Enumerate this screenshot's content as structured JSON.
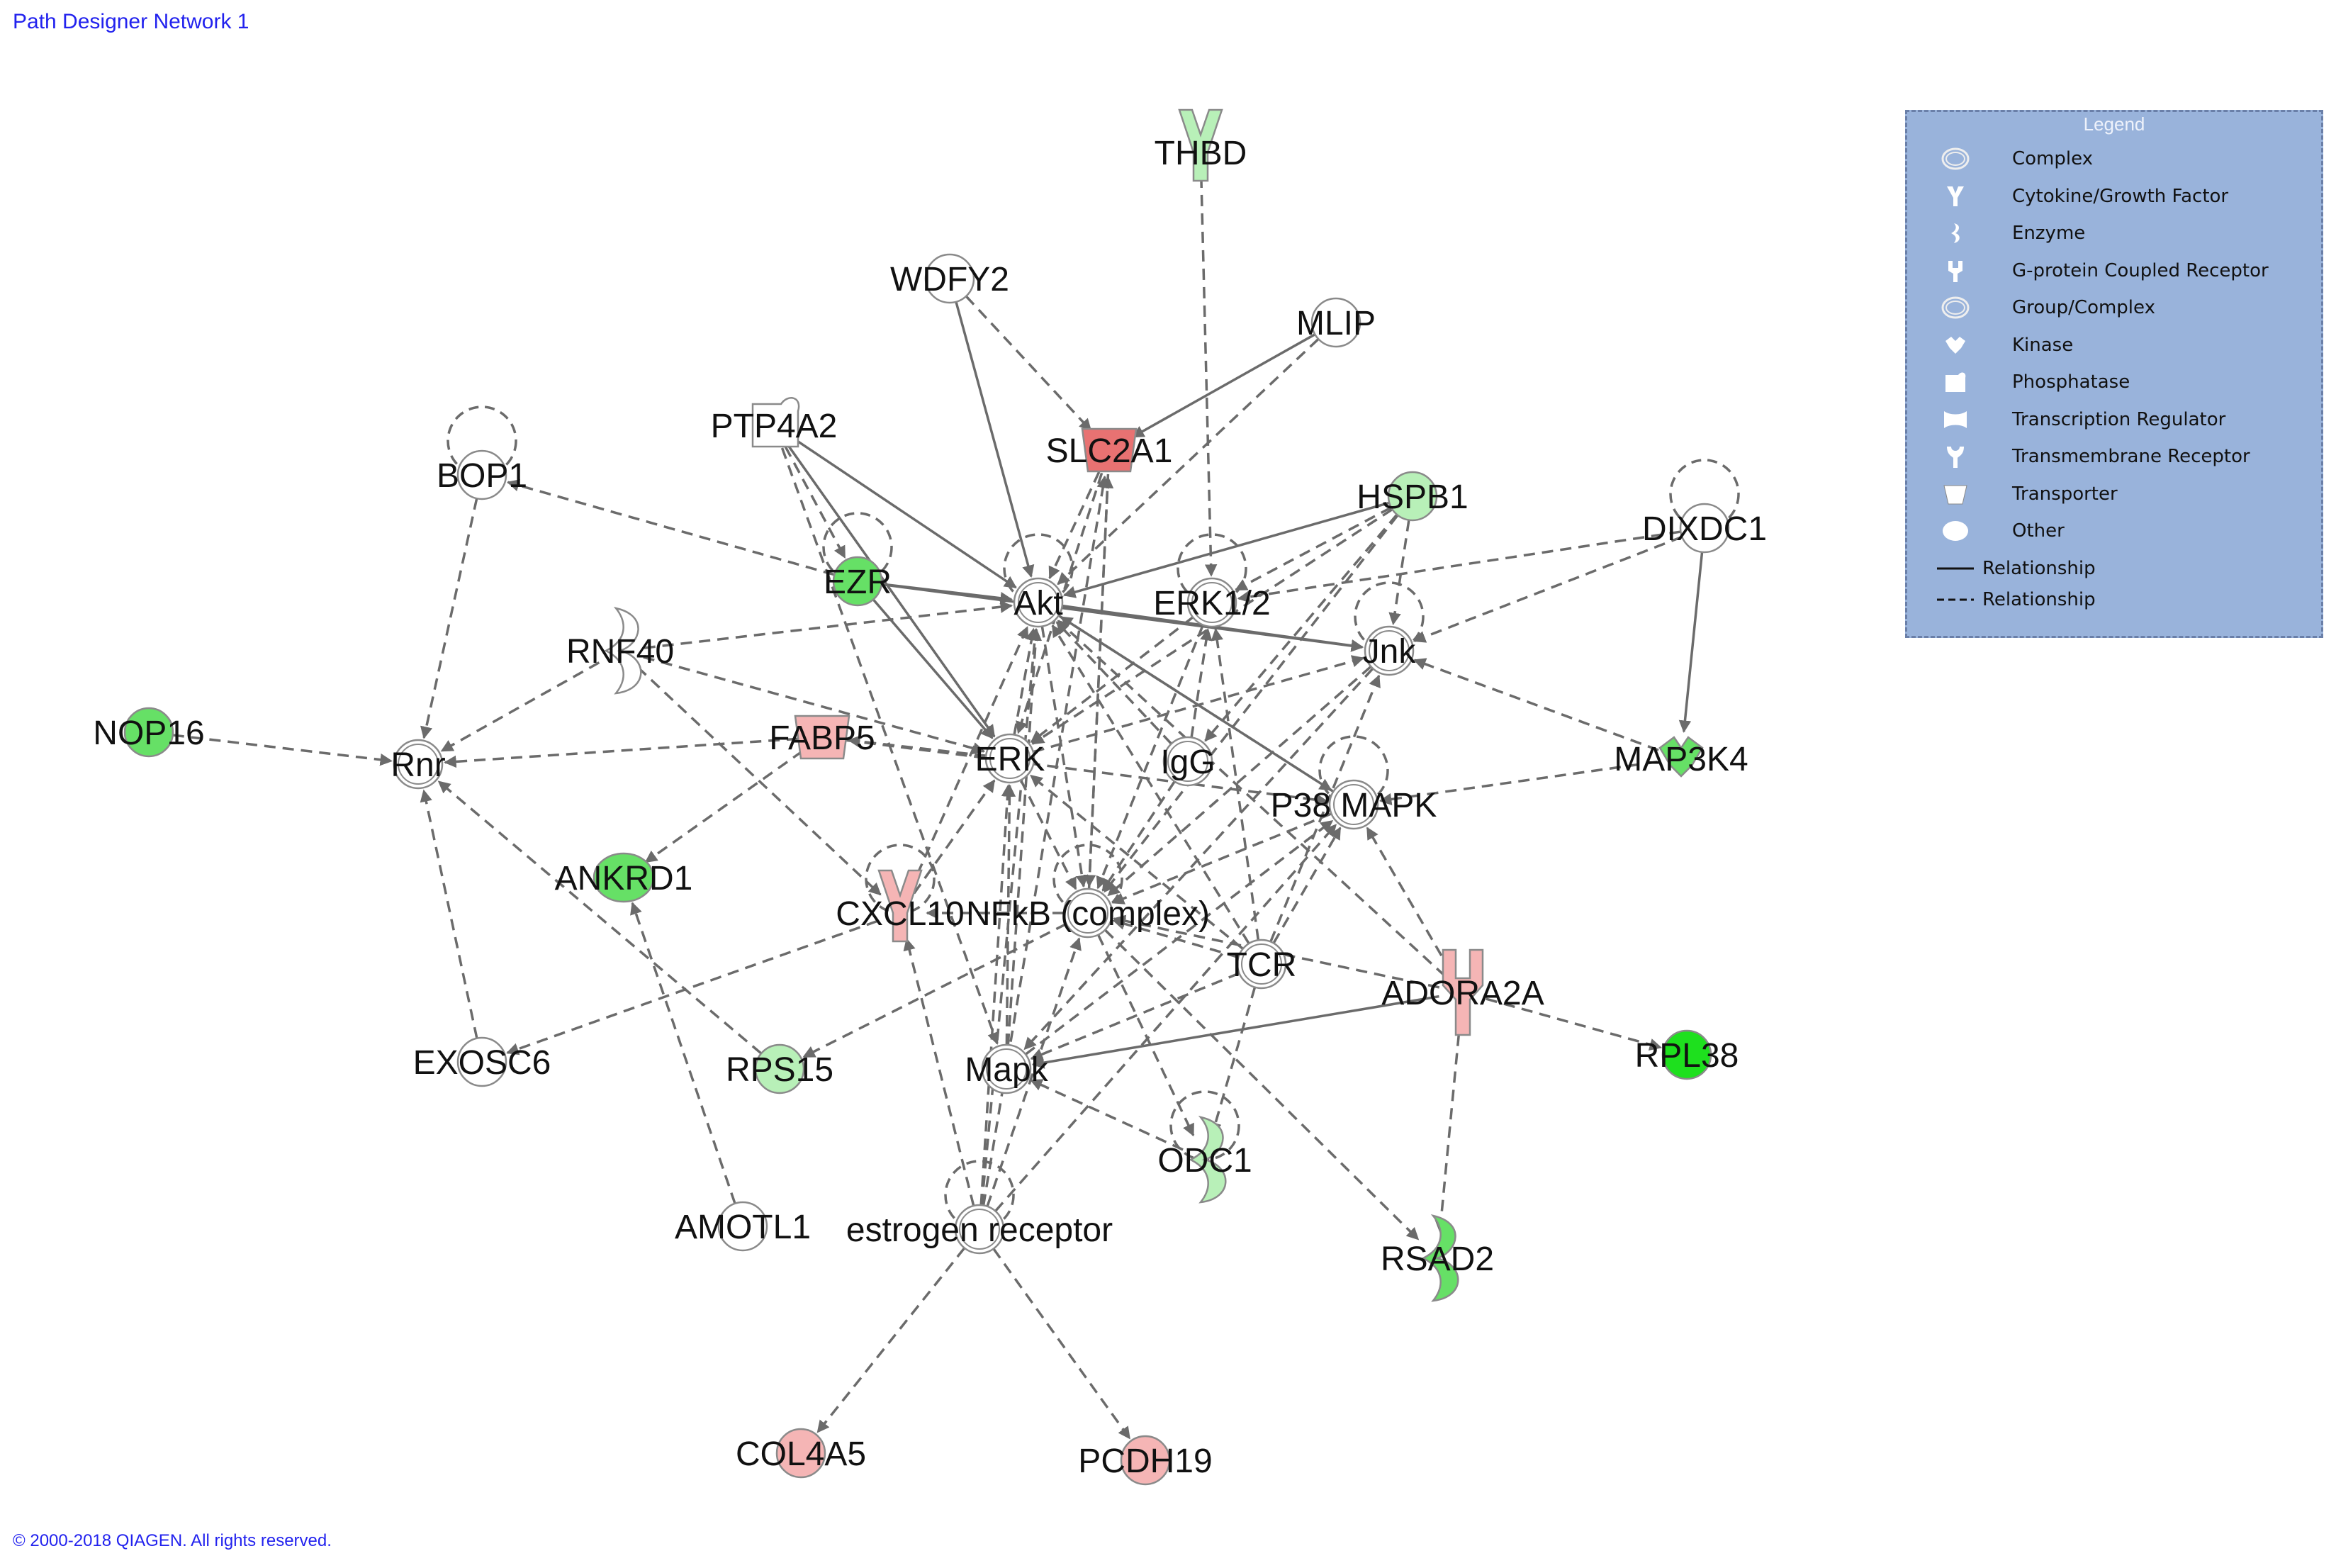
{
  "title": "Path Designer Network 1",
  "copyright": "© 2000-2018 QIAGEN. All rights reserved.",
  "colors": {
    "up_strong": "#e87272",
    "up_light": "#f5b5b5",
    "down_strong": "#1ee01e",
    "down_medium": "#66e066",
    "down_light": "#b8f0b8",
    "neutral": "#ffffff",
    "edge": "#6b6b6b",
    "legend_bg": "#99b3db"
  },
  "legend": {
    "title": "Legend",
    "items": [
      {
        "label": "Complex",
        "icon": "complex-icon"
      },
      {
        "label": "Cytokine/Growth Factor",
        "icon": "cytokine-icon"
      },
      {
        "label": "Enzyme",
        "icon": "enzyme-icon"
      },
      {
        "label": "G-protein Coupled Receptor",
        "icon": "gpcr-icon"
      },
      {
        "label": "Group/Complex",
        "icon": "group-complex-icon"
      },
      {
        "label": "Kinase",
        "icon": "kinase-icon"
      },
      {
        "label": "Phosphatase",
        "icon": "phosphatase-icon"
      },
      {
        "label": "Transcription Regulator",
        "icon": "transcription-regulator-icon"
      },
      {
        "label": "Transmembrane Receptor",
        "icon": "transmembrane-receptor-icon"
      },
      {
        "label": "Transporter",
        "icon": "transporter-icon"
      },
      {
        "label": "Other",
        "icon": "other-icon"
      }
    ],
    "relations": [
      {
        "label": "Relationship",
        "style": "solid"
      },
      {
        "label": "Relationship",
        "style": "dashed"
      }
    ]
  },
  "nodes": [
    {
      "id": "THBD",
      "label": "THBD",
      "shape": "cytokine",
      "color": "down_light"
    },
    {
      "id": "WDFY2",
      "label": "WDFY2",
      "shape": "other",
      "color": "neutral"
    },
    {
      "id": "MLIP",
      "label": "MLIP",
      "shape": "other",
      "color": "neutral"
    },
    {
      "id": "PTP4A2",
      "label": "PTP4A2",
      "shape": "phosphatase",
      "color": "neutral"
    },
    {
      "id": "SLC2A1",
      "label": "SLC2A1",
      "shape": "transporter",
      "color": "up_strong"
    },
    {
      "id": "BOP1",
      "label": "BOP1",
      "shape": "other",
      "color": "neutral"
    },
    {
      "id": "HSPB1",
      "label": "HSPB1",
      "shape": "other",
      "color": "down_light"
    },
    {
      "id": "DIXDC1",
      "label": "DIXDC1",
      "shape": "other",
      "color": "neutral"
    },
    {
      "id": "EZR",
      "label": "EZR",
      "shape": "other",
      "color": "down_medium"
    },
    {
      "id": "Akt",
      "label": "Akt",
      "shape": "group",
      "color": "neutral"
    },
    {
      "id": "ERK12",
      "label": "ERK1/2",
      "shape": "group",
      "color": "neutral"
    },
    {
      "id": "RNF40",
      "label": "RNF40",
      "shape": "enzyme",
      "color": "neutral"
    },
    {
      "id": "Jnk",
      "label": "Jnk",
      "shape": "group",
      "color": "neutral"
    },
    {
      "id": "NOP16",
      "label": "NOP16",
      "shape": "other",
      "color": "down_medium"
    },
    {
      "id": "Rnr",
      "label": "Rnr",
      "shape": "complex",
      "color": "neutral"
    },
    {
      "id": "FABP5",
      "label": "FABP5",
      "shape": "transporter",
      "color": "up_light"
    },
    {
      "id": "ERK",
      "label": "ERK",
      "shape": "group",
      "color": "neutral"
    },
    {
      "id": "IgG",
      "label": "IgG",
      "shape": "complex",
      "color": "neutral"
    },
    {
      "id": "MAP3K4",
      "label": "MAP3K4",
      "shape": "kinase",
      "color": "down_medium"
    },
    {
      "id": "P38MAPK",
      "label": "P38 MAPK",
      "shape": "group",
      "color": "neutral"
    },
    {
      "id": "ANKRD1",
      "label": "ANKRD1",
      "shape": "transcription",
      "color": "down_medium"
    },
    {
      "id": "CXCL10",
      "label": "CXCL10",
      "shape": "cytokine",
      "color": "up_light"
    },
    {
      "id": "NFkB",
      "label": "NFkB (complex)",
      "shape": "complex",
      "color": "neutral"
    },
    {
      "id": "TCR",
      "label": "TCR",
      "shape": "complex",
      "color": "neutral"
    },
    {
      "id": "ADORA2A",
      "label": "ADORA2A",
      "shape": "gpcr",
      "color": "up_light"
    },
    {
      "id": "EXOSC6",
      "label": "EXOSC6",
      "shape": "other",
      "color": "neutral"
    },
    {
      "id": "RPS15",
      "label": "RPS15",
      "shape": "other",
      "color": "down_light"
    },
    {
      "id": "Mapk",
      "label": "Mapk",
      "shape": "group",
      "color": "neutral"
    },
    {
      "id": "RPL38",
      "label": "RPL38",
      "shape": "other",
      "color": "down_strong"
    },
    {
      "id": "ODC1",
      "label": "ODC1",
      "shape": "enzyme",
      "color": "down_light"
    },
    {
      "id": "AMOTL1",
      "label": "AMOTL1",
      "shape": "other",
      "color": "neutral"
    },
    {
      "id": "EstR",
      "label": "estrogen receptor",
      "shape": "group",
      "color": "neutral"
    },
    {
      "id": "RSAD2",
      "label": "RSAD2",
      "shape": "enzyme",
      "color": "down_medium"
    },
    {
      "id": "COL4A5",
      "label": "COL4A5",
      "shape": "other",
      "color": "up_light"
    },
    {
      "id": "PCDH19",
      "label": "PCDH19",
      "shape": "other",
      "color": "up_light"
    }
  ],
  "edges": [
    {
      "from": "THBD",
      "to": "ERK12",
      "style": "dashed"
    },
    {
      "from": "WDFY2",
      "to": "SLC2A1",
      "style": "dashed"
    },
    {
      "from": "WDFY2",
      "to": "Akt",
      "style": "solid"
    },
    {
      "from": "MLIP",
      "to": "SLC2A1",
      "style": "solid"
    },
    {
      "from": "MLIP",
      "to": "Akt",
      "style": "dashed"
    },
    {
      "from": "PTP4A2",
      "to": "Akt",
      "style": "solid"
    },
    {
      "from": "PTP4A2",
      "to": "EZR",
      "style": "dashed"
    },
    {
      "from": "PTP4A2",
      "to": "ERK",
      "style": "solid"
    },
    {
      "from": "PTP4A2",
      "to": "Mapk",
      "style": "dashed"
    },
    {
      "from": "SLC2A1",
      "to": "Akt",
      "style": "dashed"
    },
    {
      "from": "SLC2A1",
      "to": "NFkB",
      "style": "dashed"
    },
    {
      "from": "SLC2A1",
      "to": "ERK",
      "style": "dashed"
    },
    {
      "from": "EZR",
      "to": "BOP1",
      "style": "dashed"
    },
    {
      "from": "EZR",
      "to": "Akt",
      "style": "solid"
    },
    {
      "from": "EZR",
      "to": "ERK",
      "style": "solid"
    },
    {
      "from": "EZR",
      "to": "Jnk",
      "style": "solid"
    },
    {
      "from": "BOP1",
      "to": "Rnr",
      "style": "dashed"
    },
    {
      "from": "HSPB1",
      "to": "Akt",
      "style": "solid"
    },
    {
      "from": "HSPB1",
      "to": "ERK12",
      "style": "dashed"
    },
    {
      "from": "HSPB1",
      "to": "Jnk",
      "style": "dashed"
    },
    {
      "from": "HSPB1",
      "to": "ERK",
      "style": "dashed"
    },
    {
      "from": "HSPB1",
      "to": "NFkB",
      "style": "dashed"
    },
    {
      "from": "HSPB1",
      "to": "IgG",
      "style": "dashed"
    },
    {
      "from": "DIXDC1",
      "to": "Jnk",
      "style": "dashed"
    },
    {
      "from": "DIXDC1",
      "to": "MAP3K4",
      "style": "solid"
    },
    {
      "from": "DIXDC1",
      "to": "ERK12",
      "style": "dashed"
    },
    {
      "from": "RNF40",
      "to": "Akt",
      "style": "dashed"
    },
    {
      "from": "RNF40",
      "to": "Rnr",
      "style": "dashed"
    },
    {
      "from": "RNF40",
      "to": "ERK",
      "style": "dashed"
    },
    {
      "from": "RNF40",
      "to": "CXCL10",
      "style": "dashed"
    },
    {
      "from": "NOP16",
      "to": "Rnr",
      "style": "dashed"
    },
    {
      "from": "FABP5",
      "to": "Rnr",
      "style": "dashed"
    },
    {
      "from": "FABP5",
      "to": "ANKRD1",
      "style": "dashed"
    },
    {
      "from": "FABP5",
      "to": "P38MAPK",
      "style": "dashed"
    },
    {
      "from": "ERK",
      "to": "Akt",
      "style": "dashed"
    },
    {
      "from": "ERK",
      "to": "Jnk",
      "style": "dashed"
    },
    {
      "from": "ERK",
      "to": "NFkB",
      "style": "dashed"
    },
    {
      "from": "ERK",
      "to": "FABP5",
      "style": "dashed"
    },
    {
      "from": "IgG",
      "to": "Akt",
      "style": "dashed"
    },
    {
      "from": "IgG",
      "to": "ERK12",
      "style": "dashed"
    },
    {
      "from": "IgG",
      "to": "NFkB",
      "style": "dashed"
    },
    {
      "from": "MAP3K4",
      "to": "Jnk",
      "style": "dashed"
    },
    {
      "from": "MAP3K4",
      "to": "P38MAPK",
      "style": "dashed"
    },
    {
      "from": "P38MAPK",
      "to": "Akt",
      "style": "solid"
    },
    {
      "from": "P38MAPK",
      "to": "NFkB",
      "style": "dashed"
    },
    {
      "from": "Akt",
      "to": "Jnk",
      "style": "solid"
    },
    {
      "from": "Akt",
      "to": "NFkB",
      "style": "dashed"
    },
    {
      "from": "Akt",
      "to": "P38MAPK",
      "style": "dashed"
    },
    {
      "from": "ERK12",
      "to": "NFkB",
      "style": "dashed"
    },
    {
      "from": "ERK12",
      "to": "ERK",
      "style": "dashed"
    },
    {
      "from": "Jnk",
      "to": "NFkB",
      "style": "dashed"
    },
    {
      "from": "Jnk",
      "to": "Mapk",
      "style": "dashed"
    },
    {
      "from": "TCR",
      "to": "Akt",
      "style": "dashed"
    },
    {
      "from": "TCR",
      "to": "ERK",
      "style": "dashed"
    },
    {
      "from": "TCR",
      "to": "Jnk",
      "style": "dashed"
    },
    {
      "from": "TCR",
      "to": "P38MAPK",
      "style": "dashed"
    },
    {
      "from": "TCR",
      "to": "NFkB",
      "style": "dashed"
    },
    {
      "from": "TCR",
      "to": "Mapk",
      "style": "dashed"
    },
    {
      "from": "TCR",
      "to": "ODC1",
      "style": "dashed"
    },
    {
      "from": "TCR",
      "to": "ERK12",
      "style": "dashed"
    },
    {
      "from": "ADORA2A",
      "to": "P38MAPK",
      "style": "dashed"
    },
    {
      "from": "ADORA2A",
      "to": "RPL38",
      "style": "dashed"
    },
    {
      "from": "ADORA2A",
      "to": "Mapk",
      "style": "solid"
    },
    {
      "from": "ADORA2A",
      "to": "NFkB",
      "style": "dashed"
    },
    {
      "from": "ADORA2A",
      "to": "Akt",
      "style": "dashed"
    },
    {
      "from": "ADORA2A",
      "to": "RSAD2",
      "style": "dashed"
    },
    {
      "from": "CXCL10",
      "to": "EXOSC6",
      "style": "dashed"
    },
    {
      "from": "CXCL10",
      "to": "Akt",
      "style": "dashed"
    },
    {
      "from": "CXCL10",
      "to": "ERK",
      "style": "dashed"
    },
    {
      "from": "NFkB",
      "to": "CXCL10",
      "style": "dashed"
    },
    {
      "from": "NFkB",
      "to": "ODC1",
      "style": "dashed"
    },
    {
      "from": "NFkB",
      "to": "RPS15",
      "style": "dashed"
    },
    {
      "from": "NFkB",
      "to": "RSAD2",
      "style": "dashed"
    },
    {
      "from": "NFkB",
      "to": "SLC2A1",
      "style": "dashed"
    },
    {
      "from": "RPS15",
      "to": "Rnr",
      "style": "dashed"
    },
    {
      "from": "EXOSC6",
      "to": "Rnr",
      "style": "dashed"
    },
    {
      "from": "Mapk",
      "to": "Akt",
      "style": "dashed"
    },
    {
      "from": "Mapk",
      "to": "ERK",
      "style": "dashed"
    },
    {
      "from": "Mapk",
      "to": "P38MAPK",
      "style": "dashed"
    },
    {
      "from": "ODC1",
      "to": "Mapk",
      "style": "dashed"
    },
    {
      "from": "AMOTL1",
      "to": "ANKRD1",
      "style": "dashed"
    },
    {
      "from": "EstR",
      "to": "Akt",
      "style": "dashed"
    },
    {
      "from": "EstR",
      "to": "ERK",
      "style": "dashed"
    },
    {
      "from": "EstR",
      "to": "NFkB",
      "style": "dashed"
    },
    {
      "from": "EstR",
      "to": "CXCL10",
      "style": "dashed"
    },
    {
      "from": "EstR",
      "to": "COL4A5",
      "style": "dashed"
    },
    {
      "from": "EstR",
      "to": "PCDH19",
      "style": "dashed"
    },
    {
      "from": "EstR",
      "to": "SLC2A1",
      "style": "dashed"
    },
    {
      "from": "EstR",
      "to": "P38MAPK",
      "style": "dashed"
    }
  ],
  "self_loops": [
    "BOP1",
    "DIXDC1",
    "EZR",
    "Akt",
    "ERK12",
    "Jnk",
    "P38MAPK",
    "NFkB",
    "CXCL10",
    "EstR",
    "ODC1"
  ]
}
